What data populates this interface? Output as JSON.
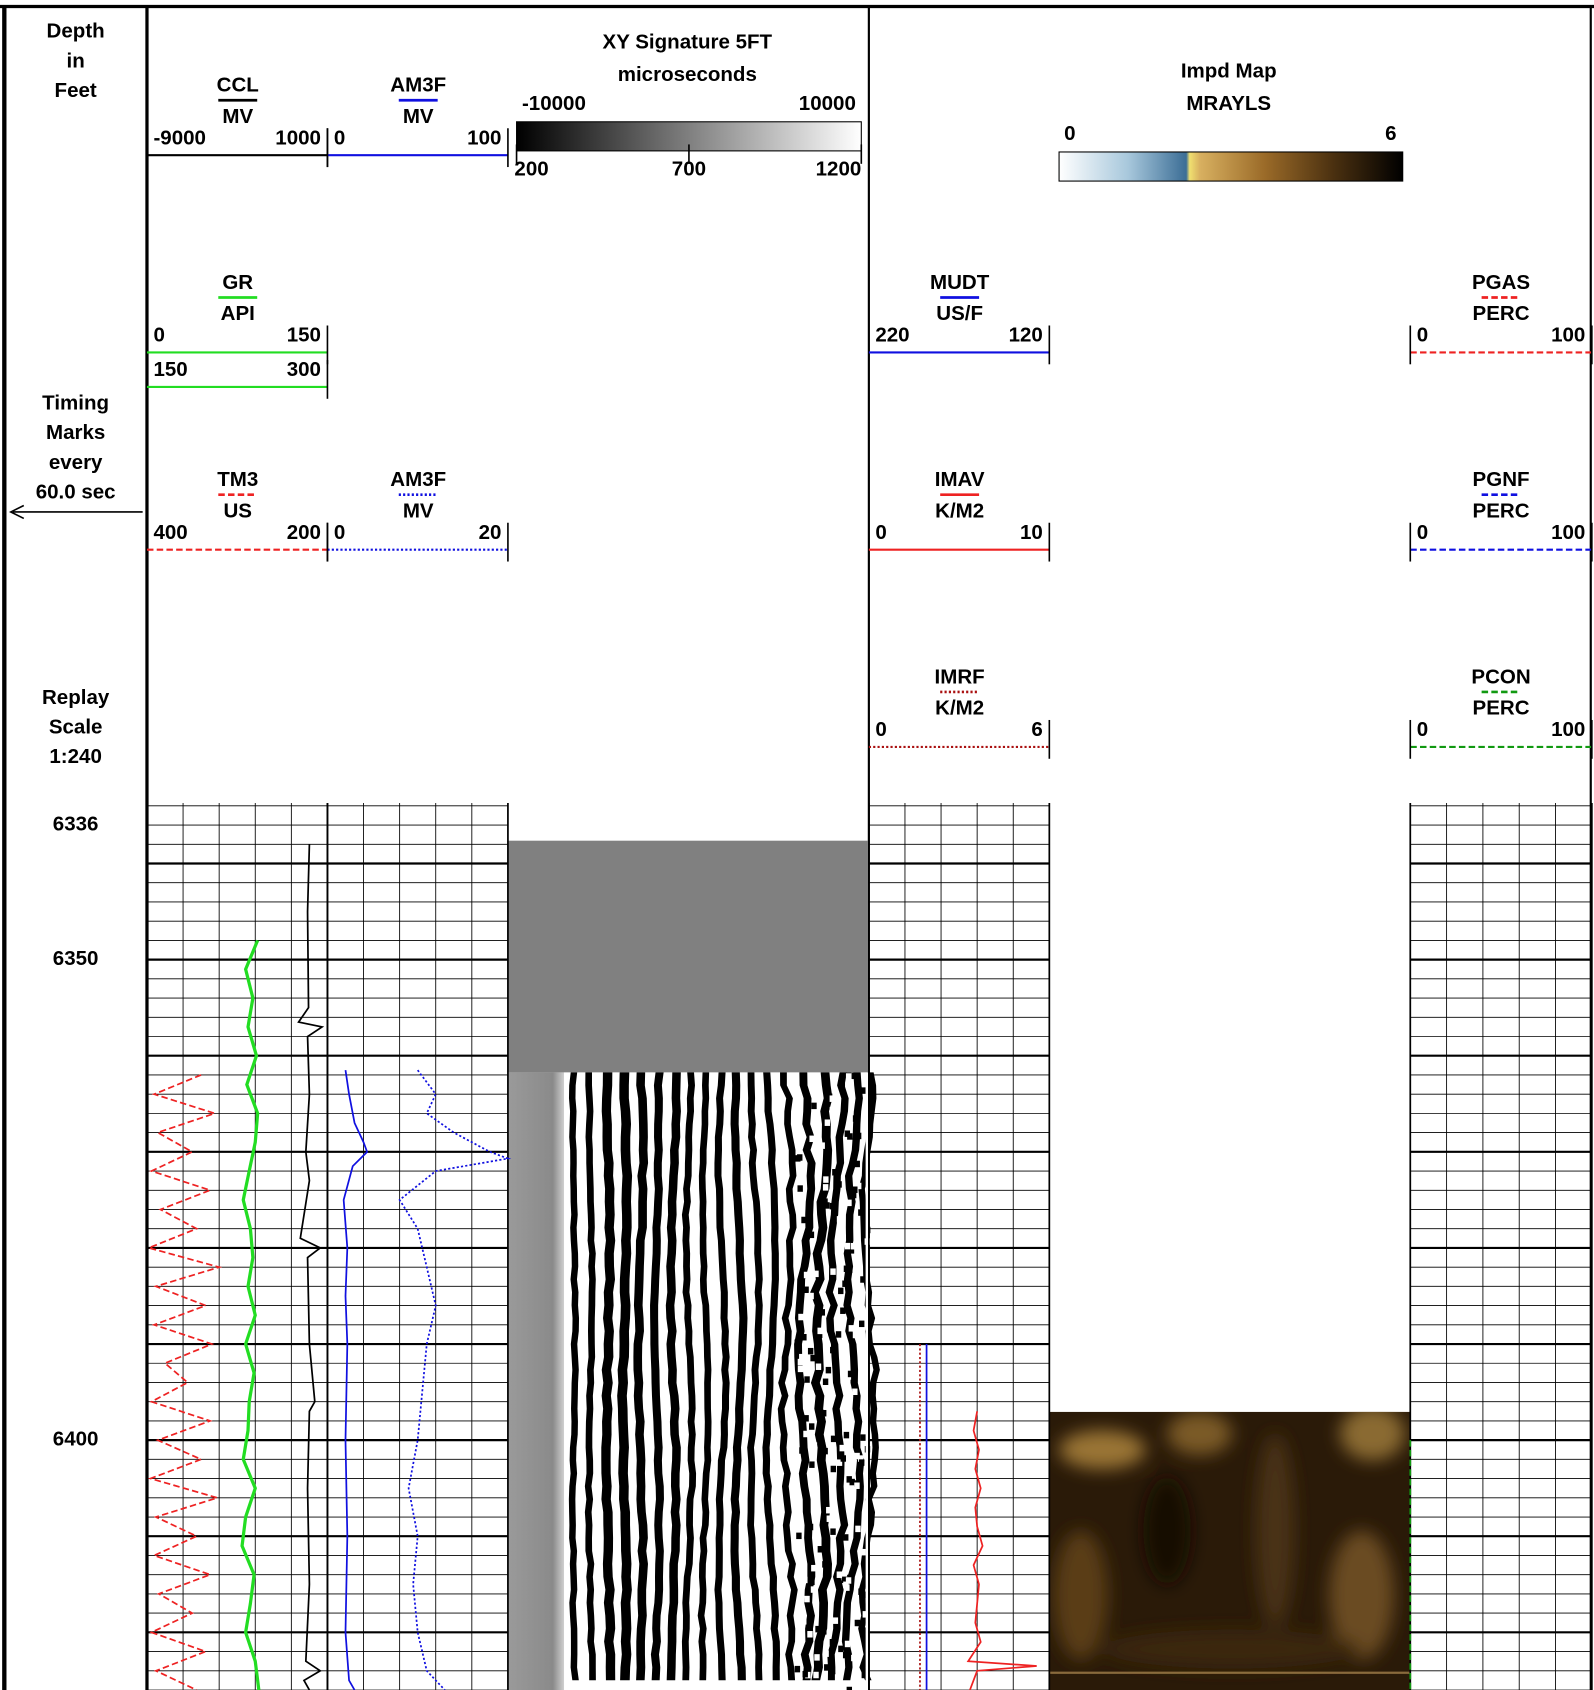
{
  "depth_track": {
    "header": [
      "Depth",
      "in",
      "Feet"
    ],
    "timing": [
      "Timing",
      "Marks",
      "every",
      "60.0 sec"
    ],
    "replay": [
      "Replay",
      "Scale",
      "1:240"
    ]
  },
  "depth_axis": {
    "range": [
      6333.7,
      6426
    ],
    "labels": [
      6336,
      6350,
      6400
    ],
    "grid_step": 2,
    "major_step": 10
  },
  "curves": [
    {
      "name": "CCL",
      "unit": "MV",
      "scales": [
        [
          -9000,
          1000
        ]
      ],
      "color": "#000000",
      "line_style": "solid",
      "depths": [
        6338,
        6345,
        6355,
        6356.5,
        6357,
        6358,
        6364,
        6370,
        6373,
        6379,
        6380,
        6381,
        6390,
        6396,
        6397,
        6405,
        6415,
        6423,
        6424,
        6425,
        6426
      ],
      "values": [
        0,
        -100,
        -50,
        -600,
        700,
        -100,
        0,
        -200,
        0,
        -500,
        600,
        -100,
        0,
        300,
        0,
        -100,
        0,
        -200,
        600,
        -300,
        0
      ]
    },
    {
      "name": "AM3F",
      "unit": "MV",
      "scales": [
        [
          0,
          100
        ]
      ],
      "color": "#1010e0",
      "line_style": "solid",
      "depths": [
        6361.5,
        6364,
        6367,
        6369,
        6370,
        6371.5,
        6375,
        6380,
        6385,
        6390,
        6400,
        6410,
        6420,
        6425,
        6426
      ],
      "values": [
        10,
        12,
        15,
        20,
        22,
        14,
        9,
        11,
        10,
        11,
        10,
        11,
        10,
        12,
        15
      ]
    },
    {
      "name": "GR",
      "unit": "API",
      "scales": [
        [
          0,
          150
        ],
        [
          150,
          300
        ]
      ],
      "color": "#22dd22",
      "line_style": "solid",
      "depths": [
        6348,
        6351,
        6354,
        6357,
        6360,
        6363,
        6366,
        6369,
        6372,
        6375,
        6378,
        6381,
        6384,
        6387,
        6390,
        6393,
        6396,
        6399,
        6402,
        6405,
        6408,
        6411,
        6414,
        6417,
        6420,
        6423,
        6426
      ],
      "values": [
        92,
        82,
        88,
        84,
        91,
        83,
        92,
        90,
        85,
        80,
        86,
        88,
        84,
        90,
        82,
        89,
        85,
        84,
        80,
        90,
        82,
        79,
        89,
        86,
        82,
        90,
        93
      ]
    },
    {
      "name": "MUDT",
      "unit": "US/F",
      "scales": [
        [
          220,
          120
        ]
      ],
      "color": "#1010e0",
      "line_style": "solid",
      "depths": [
        6390,
        6426
      ],
      "values": [
        188,
        188
      ]
    },
    {
      "name": "PGAS",
      "unit": "PERC",
      "scales": [
        [
          0,
          100
        ]
      ],
      "color": "#ee2222",
      "line_style": "dashed"
    },
    {
      "name": "TM3",
      "unit": "US",
      "scales": [
        [
          400,
          200
        ]
      ],
      "color": "#ee2222",
      "line_style": "dashed",
      "depths": [
        6362,
        6364,
        6366,
        6368,
        6370,
        6372,
        6374,
        6376,
        6378,
        6380,
        6382,
        6384,
        6386,
        6388,
        6390,
        6392,
        6394,
        6396,
        6398,
        6400,
        6402,
        6404,
        6406,
        6408,
        6410,
        6412,
        6414,
        6416,
        6418,
        6420,
        6422,
        6424,
        6426
      ],
      "values": [
        340,
        392,
        325,
        388,
        350,
        395,
        330,
        385,
        345,
        398,
        320,
        390,
        335,
        392,
        328,
        380,
        355,
        395,
        330,
        388,
        340,
        396,
        322,
        390,
        345,
        392,
        330,
        387,
        350,
        395,
        335,
        390,
        345
      ]
    },
    {
      "name": "AM3F",
      "unit": "MV",
      "scales": [
        [
          0,
          20
        ]
      ],
      "color": "#1010e0",
      "line_style": "dotted",
      "depths": [
        6361.5,
        6364,
        6366,
        6368,
        6370,
        6370.7,
        6372,
        6375,
        6378,
        6382,
        6386,
        6390,
        6395,
        6400,
        6405,
        6410,
        6415,
        6420,
        6424,
        6426
      ],
      "values": [
        10,
        12,
        11,
        14,
        18,
        20,
        12,
        8,
        10,
        11,
        12,
        11,
        10.5,
        10,
        9,
        10,
        9.5,
        10,
        11,
        13
      ]
    },
    {
      "name": "IMAV",
      "unit": "K/M2",
      "scales": [
        [
          0,
          10
        ]
      ],
      "color": "#ee2222",
      "line_style": "solid",
      "depths": [
        6397,
        6399,
        6401,
        6403,
        6405,
        6407,
        6409,
        6411,
        6413,
        6415,
        6417,
        6419,
        6421,
        6423,
        6423.5,
        6424,
        6426
      ],
      "values": [
        6.0,
        5.8,
        6.1,
        5.9,
        6.2,
        5.9,
        6.0,
        6.3,
        5.8,
        6.1,
        6.0,
        5.9,
        6.2,
        5.5,
        9.3,
        6.0,
        5.6
      ]
    },
    {
      "name": "PGNF",
      "unit": "PERC",
      "scales": [
        [
          0,
          100
        ]
      ],
      "color": "#1010e0",
      "line_style": "dashed"
    },
    {
      "name": "IMRF",
      "unit": "K/M2",
      "scales": [
        [
          0,
          6
        ]
      ],
      "color": "#aa1111",
      "line_style": "dotted",
      "depths": [
        6390,
        6426
      ],
      "values": [
        1.7,
        1.7
      ]
    },
    {
      "name": "PCON",
      "unit": "PERC",
      "scales": [
        [
          0,
          100
        ]
      ],
      "color": "#119911",
      "line_style": "dashed",
      "depths": [
        6400,
        6426
      ],
      "values": [
        0,
        0
      ]
    }
  ],
  "xy_signature": {
    "title": "XY Signature 5FT",
    "unit": "microseconds",
    "color_range": [
      -10000,
      10000
    ],
    "time_range": [
      200,
      1200
    ],
    "time_ticks": [
      200,
      700,
      1200
    ]
  },
  "impd_map": {
    "title": "Impd Map",
    "unit": "MRAYLS",
    "color_range": [
      0,
      6
    ]
  }
}
